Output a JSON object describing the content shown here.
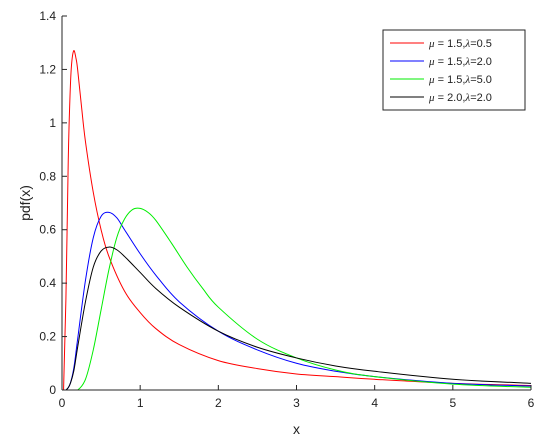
{
  "chart_data": {
    "type": "line",
    "title": "",
    "xlabel": "x",
    "ylabel": "pdf(x)",
    "xlim": [
      0,
      6
    ],
    "ylim": [
      0,
      1.4
    ],
    "xticks": [
      0,
      1,
      2,
      3,
      4,
      5,
      6
    ],
    "yticks": [
      0,
      0.2,
      0.4,
      0.6,
      0.8,
      1,
      1.2,
      1.4
    ],
    "xtick_labels": [
      "0",
      "1",
      "2",
      "3",
      "4",
      "5",
      "6"
    ],
    "ytick_labels": [
      "0",
      "0.2",
      "0.4",
      "0.6",
      "0.8",
      "1",
      "1.2",
      "1.4"
    ],
    "grid": false,
    "legend_position": "top-right",
    "series": [
      {
        "name": "μ = 1.5,λ=0.5",
        "name_symbol_1": "μ",
        "name_part_1": " = 1.5,",
        "name_symbol_2": "λ",
        "name_part_2": "=0.5",
        "color": "#ff0000",
        "x": [
          0.02,
          0.05,
          0.08,
          0.1,
          0.12,
          0.15,
          0.18,
          0.2,
          0.25,
          0.3,
          0.4,
          0.5,
          0.6,
          0.8,
          1.0,
          1.2,
          1.5,
          2.0,
          2.5,
          3.0,
          3.5,
          4.0,
          5.0,
          6.0
        ],
        "y": [
          0.0,
          0.34,
          0.86,
          1.08,
          1.21,
          1.27,
          1.24,
          1.2,
          1.06,
          0.93,
          0.74,
          0.6,
          0.5,
          0.37,
          0.29,
          0.23,
          0.17,
          0.11,
          0.08,
          0.06,
          0.05,
          0.04,
          0.025,
          0.017
        ]
      },
      {
        "name": "μ = 1.5,λ=2.0",
        "name_symbol_1": "μ",
        "name_part_1": " = 1.5,",
        "name_symbol_2": "λ",
        "name_part_2": "=2.0",
        "color": "#0000ff",
        "x": [
          0.0,
          0.05,
          0.1,
          0.15,
          0.2,
          0.3,
          0.4,
          0.5,
          0.6,
          0.7,
          0.8,
          1.0,
          1.2,
          1.5,
          2.0,
          2.5,
          3.0,
          3.5,
          4.0,
          5.0,
          6.0
        ],
        "y": [
          0.0,
          0.0,
          0.02,
          0.08,
          0.19,
          0.41,
          0.57,
          0.65,
          0.665,
          0.645,
          0.6,
          0.51,
          0.43,
          0.33,
          0.22,
          0.15,
          0.1,
          0.07,
          0.05,
          0.025,
          0.015
        ]
      },
      {
        "name": "μ = 1.5,λ=5.0",
        "name_symbol_1": "μ",
        "name_part_1": " = 1.5,",
        "name_symbol_2": "λ",
        "name_part_2": "=5.0",
        "color": "#00ee00",
        "x": [
          0.0,
          0.1,
          0.2,
          0.3,
          0.4,
          0.5,
          0.6,
          0.7,
          0.8,
          0.9,
          1.0,
          1.1,
          1.2,
          1.4,
          1.6,
          1.8,
          2.0,
          2.5,
          3.0,
          3.5,
          4.0,
          5.0,
          6.0
        ],
        "y": [
          0.0,
          0.0,
          0.0,
          0.04,
          0.15,
          0.3,
          0.45,
          0.57,
          0.64,
          0.675,
          0.68,
          0.665,
          0.635,
          0.55,
          0.46,
          0.38,
          0.31,
          0.19,
          0.12,
          0.075,
          0.05,
          0.022,
          0.01
        ]
      },
      {
        "name": "μ = 2.0,λ=2.0",
        "name_symbol_1": "μ",
        "name_part_1": " = 2.0,",
        "name_symbol_2": "λ",
        "name_part_2": "=2.0",
        "color": "#000000",
        "x": [
          0.0,
          0.05,
          0.1,
          0.15,
          0.2,
          0.3,
          0.4,
          0.5,
          0.6,
          0.7,
          0.8,
          1.0,
          1.2,
          1.5,
          2.0,
          2.5,
          3.0,
          3.5,
          4.0,
          5.0,
          6.0
        ],
        "y": [
          0.0,
          0.0,
          0.02,
          0.07,
          0.16,
          0.33,
          0.46,
          0.52,
          0.535,
          0.525,
          0.5,
          0.44,
          0.38,
          0.31,
          0.22,
          0.16,
          0.12,
          0.09,
          0.07,
          0.04,
          0.025
        ]
      }
    ]
  }
}
